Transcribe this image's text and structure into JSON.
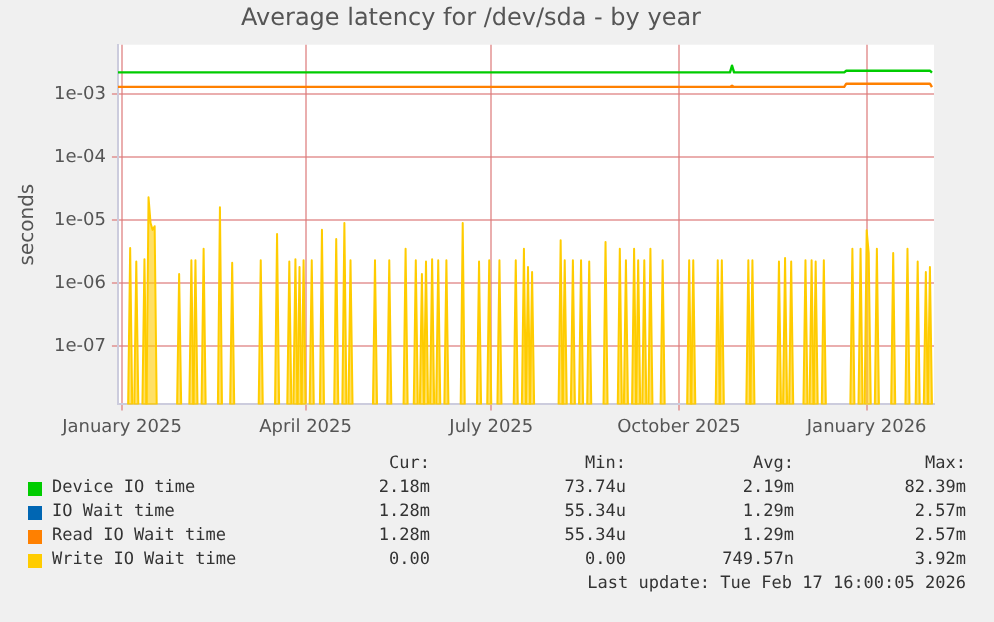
{
  "chart_data": {
    "type": "line",
    "title": "Average latency for /dev/sda - by year",
    "ylabel": "seconds",
    "log": "y",
    "grid": true,
    "legend": "bottom",
    "marker": "none",
    "xlim": [
      "2025-01-14",
      "2026-02-18"
    ],
    "xticks": [
      {
        "value": "2025-01-16",
        "label": "January 2025"
      },
      {
        "value": "2025-04-16",
        "label": "April 2025"
      },
      {
        "value": "2025-07-16",
        "label": "July 2025"
      },
      {
        "value": "2025-10-16",
        "label": "October 2025"
      },
      {
        "value": "2026-01-16",
        "label": "January 2026"
      }
    ],
    "ylim": [
      1.2e-08,
      0.006
    ],
    "yticks": [
      {
        "value": 1e-07,
        "label": "1e-07"
      },
      {
        "value": 1e-06,
        "label": "1e-06"
      },
      {
        "value": 1e-05,
        "label": "1e-05"
      },
      {
        "value": 0.0001,
        "label": "1e-04"
      },
      {
        "value": 0.001,
        "label": "1e-03"
      }
    ],
    "series": [
      {
        "name": "Device IO time",
        "color": "#00cc00",
        "type": "line",
        "x": [
          "2025-01-14",
          "2025-11-10",
          "2025-11-11",
          "2025-11-12",
          "2026-01-05",
          "2026-01-06",
          "2026-02-16",
          "2026-02-17"
        ],
        "values": [
          0.00219,
          0.00219,
          0.0028,
          0.00219,
          0.00219,
          0.00233,
          0.00233,
          0.00218
        ]
      },
      {
        "name": "IO Wait time",
        "color": "#0066b3",
        "type": "line"
      },
      {
        "name": "Read IO Wait time",
        "color": "#ff8000",
        "type": "line",
        "x": [
          "2025-01-14",
          "2025-11-10",
          "2025-11-11",
          "2025-11-12",
          "2026-01-05",
          "2026-01-06",
          "2026-02-16",
          "2026-02-17"
        ],
        "values": [
          0.00129,
          0.00129,
          0.00135,
          0.00129,
          0.00129,
          0.00145,
          0.00145,
          0.00128
        ]
      },
      {
        "name": "Write IO Wait time",
        "color": "#ffcc00",
        "type": "area",
        "x": [
          "2025-01-20",
          "2025-01-23",
          "2025-01-27",
          "2025-01-29",
          "2025-01-30",
          "2025-01-31",
          "2025-02-01",
          "2025-02-13",
          "2025-02-19",
          "2025-02-21",
          "2025-02-25",
          "2025-03-05",
          "2025-03-11",
          "2025-03-25",
          "2025-04-02",
          "2025-04-08",
          "2025-04-11",
          "2025-04-13",
          "2025-04-15",
          "2025-04-19",
          "2025-04-24",
          "2025-05-01",
          "2025-05-05",
          "2025-05-08",
          "2025-05-20",
          "2025-05-27",
          "2025-06-04",
          "2025-06-09",
          "2025-06-12",
          "2025-06-14",
          "2025-06-17",
          "2025-06-20",
          "2025-06-24",
          "2025-07-02",
          "2025-07-10",
          "2025-07-15",
          "2025-07-20",
          "2025-07-28",
          "2025-08-01",
          "2025-08-03",
          "2025-08-05",
          "2025-08-19",
          "2025-08-21",
          "2025-08-25",
          "2025-08-29",
          "2025-09-02",
          "2025-09-10",
          "2025-09-17",
          "2025-09-20",
          "2025-09-24",
          "2025-09-26",
          "2025-09-29",
          "2025-10-02",
          "2025-10-08",
          "2025-10-21",
          "2025-10-23",
          "2025-11-04",
          "2025-11-06",
          "2025-11-19",
          "2025-11-21",
          "2025-12-04",
          "2025-12-07",
          "2025-12-10",
          "2025-12-17",
          "2025-12-20",
          "2025-12-22",
          "2025-12-26",
          "2026-01-09",
          "2026-01-13",
          "2026-01-16",
          "2026-01-17",
          "2026-01-21",
          "2026-01-29",
          "2026-02-05",
          "2026-02-10",
          "2026-02-14",
          "2026-02-16"
        ],
        "values": [
          3.6e-06,
          2.2e-06,
          2.4e-06,
          2.3e-05,
          9e-06,
          7e-06,
          8e-06,
          1.4e-06,
          2.3e-06,
          2.3e-06,
          3.5e-06,
          1.6e-05,
          2.1e-06,
          2.3e-06,
          6e-06,
          2.2e-06,
          2.4e-06,
          1.8e-06,
          2.3e-06,
          2.3e-06,
          7e-06,
          5e-06,
          9e-06,
          2.3e-06,
          2.3e-06,
          2.3e-06,
          3.5e-06,
          2.3e-06,
          1.4e-06,
          2.2e-06,
          2.4e-06,
          2.3e-06,
          2.3e-06,
          9e-06,
          2.2e-06,
          2.3e-06,
          2.3e-06,
          2.3e-06,
          3.5e-06,
          1.8e-06,
          1.5e-06,
          4.8e-06,
          2.3e-06,
          2.3e-06,
          2.3e-06,
          2.2e-06,
          4.5e-06,
          3.5e-06,
          2.3e-06,
          3.5e-06,
          2.3e-06,
          2.3e-06,
          3.5e-06,
          2.3e-06,
          2.3e-06,
          2.3e-06,
          2.3e-06,
          2.3e-06,
          2.3e-06,
          2.3e-06,
          2.2e-06,
          2.5e-06,
          2.2e-06,
          2.3e-06,
          2.3e-06,
          2.2e-06,
          2.3e-06,
          3.5e-06,
          3.5e-06,
          6.9e-06,
          3e-06,
          3.5e-06,
          3e-06,
          3.5e-06,
          2.2e-06,
          1.5e-06,
          1.8e-06
        ]
      }
    ],
    "annotations": [
      "Cur:",
      "Min:",
      "Avg:",
      "Max:",
      "2.18m",
      "73.74u",
      "2.19m",
      "82.39m",
      "1.28m",
      "55.34u",
      "1.29m",
      "2.57m",
      "1.28m",
      "55.34u",
      "1.29m",
      "2.57m",
      "0.00",
      "0.00",
      "749.57n",
      "3.92m",
      "Last update: Tue Feb 17 16:00:05 2026"
    ]
  }
}
